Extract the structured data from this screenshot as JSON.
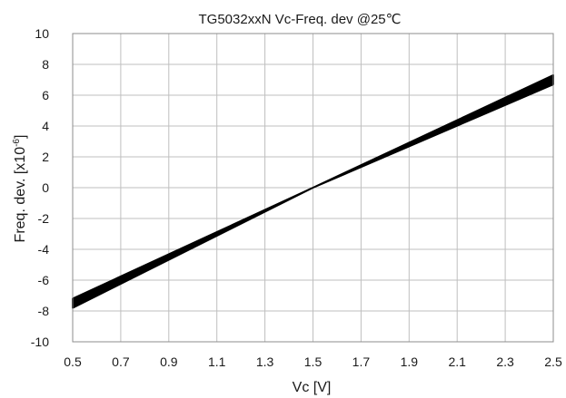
{
  "chart_data": {
    "type": "line",
    "title": "TG5032xxN  Vc-Freq. dev  @25℃",
    "xlabel": "Vc [V]",
    "ylabel_main": "Freq. dev. [x10",
    "ylabel_exp": "-6",
    "ylabel_end": "]",
    "xlim": [
      0.5,
      2.5
    ],
    "ylim": [
      -10,
      10
    ],
    "grid": true,
    "x_ticks": [
      "0.5",
      "0.7",
      "0.9",
      "1.1",
      "1.3",
      "1.5",
      "1.7",
      "1.9",
      "2.1",
      "2.3",
      "2.5"
    ],
    "y_ticks": [
      "10",
      "8",
      "6",
      "4",
      "2",
      "0",
      "-2",
      "-4",
      "-6",
      "-8",
      "-10"
    ],
    "band_upper": {
      "x": [
        0.5,
        1.5,
        2.5
      ],
      "y": [
        -7.2,
        0.0,
        7.3
      ]
    },
    "band_lower": {
      "x": [
        0.5,
        1.5,
        2.5
      ],
      "y": [
        -7.8,
        0.0,
        6.7
      ]
    },
    "line_color": "#000000"
  }
}
